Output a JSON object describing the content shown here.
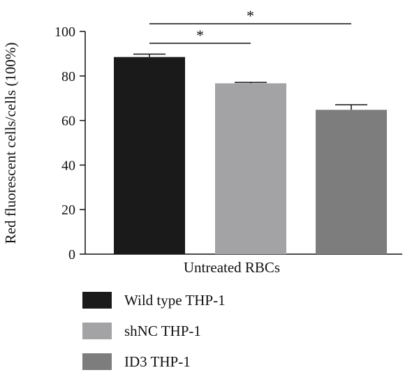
{
  "chart_data": {
    "type": "bar",
    "title": "",
    "xlabel": "Untreated RBCs",
    "ylabel": "Red fluorescent cells/cells (100%)",
    "ylim": [
      0,
      100
    ],
    "yticks": [
      0,
      20,
      40,
      60,
      80,
      100
    ],
    "grid": false,
    "legend_position": "bottom",
    "series": [
      {
        "name": "Wild type THP-1",
        "value": 88.5,
        "error": 1.3,
        "color": "#1a1a1a"
      },
      {
        "name": "shNC THP-1",
        "value": 76.7,
        "error": 0.4,
        "color": "#a3a3a5"
      },
      {
        "name": "ID3 THP-1",
        "value": 64.8,
        "error": 2.3,
        "color": "#7d7d7d"
      }
    ],
    "significance": [
      {
        "from": "Wild type THP-1",
        "to": "shNC THP-1",
        "label": "*"
      },
      {
        "from": "Wild type THP-1",
        "to": "ID3 THP-1",
        "label": "*"
      }
    ]
  }
}
